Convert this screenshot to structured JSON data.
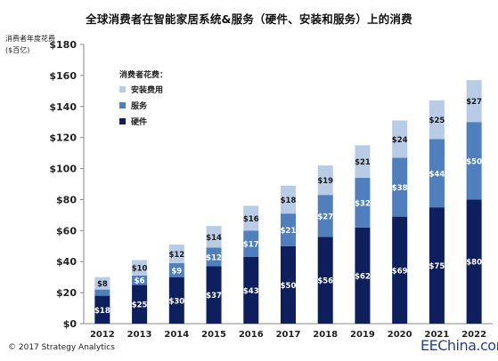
{
  "title": "全球消费者在智能家居系统&服务（硬件、安装和服务）上的消费",
  "ylabel": "消费者年度花费 ($百亿)",
  "copyright": "© 2017 Strategy Analytics",
  "watermark": "EEChina.com",
  "chart_data": {
    "type": "bar",
    "stacked": true,
    "title": "全球消费者在智能家居系统&服务（硬件、安装和服务）上的消费",
    "ylabel": "消费者年度花费 ($百亿)",
    "xlabel": "",
    "ylim": [
      0,
      180
    ],
    "yticks": [
      0,
      20,
      40,
      60,
      80,
      100,
      120,
      140,
      160,
      180
    ],
    "ytick_labels": [
      "$0",
      "$20",
      "$40",
      "$60",
      "$80",
      "$100",
      "$120",
      "$140",
      "$160",
      "$180"
    ],
    "grid": false,
    "legend_title": "消费者花费：",
    "legend_position": "top-left",
    "categories": [
      "2012",
      "2013",
      "2014",
      "2015",
      "2016",
      "2017",
      "2018",
      "2019",
      "2020",
      "2021",
      "2022"
    ],
    "series": [
      {
        "name": "硬件",
        "color": "#0d1f5c",
        "label_color": "#ffffff",
        "values": [
          18,
          25,
          30,
          37,
          43,
          50,
          56,
          62,
          69,
          75,
          80
        ],
        "labels": [
          "$18",
          "$25",
          "$30",
          "$37",
          "$43",
          "$50",
          "$56",
          "$62",
          "$69",
          "$75",
          "$80"
        ]
      },
      {
        "name": "服务",
        "color": "#4f7fbd",
        "label_color": "#ffffff",
        "values": [
          4,
          6,
          9,
          12,
          17,
          21,
          27,
          32,
          38,
          44,
          50
        ],
        "labels": [
          "",
          "$6",
          "$9",
          "$12",
          "$17",
          "$21",
          "$27",
          "$32",
          "$38",
          "$44",
          "$50"
        ]
      },
      {
        "name": "安装费用",
        "color": "#b9cce6",
        "label_color": "#1a1a1a",
        "values": [
          8,
          10,
          12,
          14,
          16,
          18,
          19,
          21,
          24,
          25,
          27
        ],
        "labels": [
          "$8",
          "$10",
          "$12",
          "$14",
          "$16",
          "$18",
          "$19",
          "$21",
          "$24",
          "$25",
          "$27"
        ]
      }
    ],
    "legend_order": [
      "安装费用",
      "服务",
      "硬件"
    ]
  }
}
